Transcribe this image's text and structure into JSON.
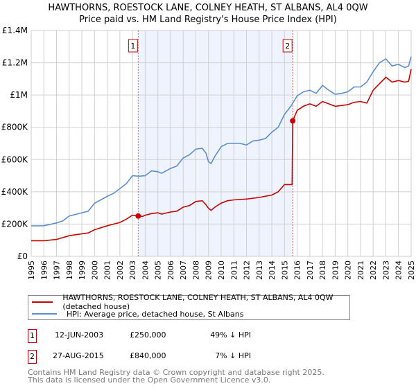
{
  "chart_data": {
    "type": "line",
    "title": "HAWTHORNS, ROESTOCK LANE, COLNEY HEATH, ST ALBANS, AL4 0QW",
    "subtitle": "Price paid vs. HM Land Registry's House Price Index (HPI)",
    "xlim": [
      1995,
      2025
    ],
    "ylim": [
      0,
      1400000
    ],
    "x_ticks": [
      "1995",
      "1996",
      "1997",
      "1998",
      "1999",
      "2000",
      "2001",
      "2002",
      "2003",
      "2004",
      "2005",
      "2006",
      "2007",
      "2008",
      "2009",
      "2010",
      "2011",
      "2012",
      "2013",
      "2014",
      "2015",
      "2016",
      "2017",
      "2018",
      "2019",
      "2020",
      "2021",
      "2022",
      "2023",
      "2024",
      "2025"
    ],
    "y_ticks": [
      {
        "v": 0,
        "label": "£0"
      },
      {
        "v": 200000,
        "label": "£200K"
      },
      {
        "v": 400000,
        "label": "£400K"
      },
      {
        "v": 600000,
        "label": "£600K"
      },
      {
        "v": 800000,
        "label": "£800K"
      },
      {
        "v": 1000000,
        "label": "£1M"
      },
      {
        "v": 1200000,
        "label": "£1.2M"
      },
      {
        "v": 1400000,
        "label": "£1.4M"
      }
    ],
    "grid": true,
    "shaded_range": [
      2003.45,
      2015.65
    ],
    "series": [
      {
        "name": "HAWTHORNS, ROESTOCK LANE, COLNEY HEATH, ST ALBANS, AL4 0QW (detached house)",
        "color": "#cc0000",
        "x": [
          1995,
          1996,
          1997,
          1998,
          1999,
          1999.5,
          2000,
          2001,
          2002,
          2002.5,
          2003,
          2003.45,
          2003.8,
          2004,
          2004.5,
          2005,
          2005.3,
          2006,
          2006.5,
          2007,
          2007.5,
          2008,
          2008.5,
          2008.8,
          2009,
          2009.2,
          2009.5,
          2010,
          2010.5,
          2011,
          2012,
          2013,
          2014,
          2014.5,
          2015,
          2015.6,
          2015.65,
          2016,
          2016.5,
          2017,
          2017.5,
          2018,
          2018.5,
          2019,
          2020,
          2020.5,
          2021,
          2021.5,
          2022,
          2022.5,
          2023,
          2023.5,
          2024,
          2024.5,
          2024.8,
          2025
        ],
        "y": [
          97000,
          97000,
          105000,
          128000,
          140000,
          145000,
          165000,
          190000,
          210000,
          230000,
          255000,
          250000,
          248000,
          255000,
          265000,
          270000,
          262000,
          275000,
          280000,
          305000,
          315000,
          340000,
          345000,
          320000,
          298000,
          285000,
          305000,
          330000,
          345000,
          350000,
          355000,
          365000,
          380000,
          400000,
          445000,
          445000,
          840000,
          905000,
          930000,
          945000,
          930000,
          960000,
          945000,
          930000,
          940000,
          955000,
          960000,
          950000,
          1030000,
          1070000,
          1110000,
          1080000,
          1090000,
          1080000,
          1085000,
          1160000
        ]
      },
      {
        "name": "HPI: Average price, detached house, St Albans",
        "color": "#5b8dd0",
        "x": [
          1995,
          1996,
          1997,
          1997.5,
          1998,
          1999,
          1999.5,
          2000,
          2001,
          2001.5,
          2002,
          2002.5,
          2003,
          2003.5,
          2004,
          2004.5,
          2005,
          2005.3,
          2006,
          2006.5,
          2007,
          2007.5,
          2008,
          2008.5,
          2008.8,
          2009,
          2009.2,
          2009.5,
          2010,
          2010.5,
          2011,
          2011.5,
          2012,
          2012.5,
          2013,
          2013.5,
          2014,
          2014.5,
          2015,
          2015.5,
          2016,
          2016.5,
          2017,
          2017.5,
          2018,
          2018.5,
          2019,
          2019.5,
          2020,
          2020.5,
          2021,
          2021.5,
          2022,
          2022.5,
          2023,
          2023.5,
          2024,
          2024.5,
          2024.8,
          2025
        ],
        "y": [
          189000,
          190000,
          207000,
          220000,
          250000,
          270000,
          280000,
          329000,
          372000,
          390000,
          420000,
          450000,
          500000,
          497000,
          500000,
          530000,
          525000,
          515000,
          545000,
          560000,
          610000,
          630000,
          665000,
          670000,
          640000,
          587000,
          575000,
          620000,
          680000,
          700000,
          700000,
          700000,
          690000,
          715000,
          720000,
          730000,
          770000,
          800000,
          880000,
          930000,
          995000,
          1020000,
          1030000,
          1010000,
          1060000,
          1030000,
          1005000,
          1010000,
          1020000,
          1050000,
          1050000,
          1080000,
          1145000,
          1200000,
          1224000,
          1180000,
          1190000,
          1170000,
          1180000,
          1238000
        ]
      }
    ],
    "markers": [
      {
        "id": "1",
        "x": 2003.45,
        "y": 250000
      },
      {
        "id": "2",
        "x": 2015.65,
        "y": 840000
      }
    ]
  },
  "header": {
    "title": "HAWTHORNS, ROESTOCK LANE, COLNEY HEATH, ST ALBANS, AL4 0QW",
    "subtitle": "Price paid vs. HM Land Registry's House Price Index (HPI)"
  },
  "legend": {
    "items": [
      {
        "label": "HAWTHORNS, ROESTOCK LANE, COLNEY HEATH, ST ALBANS, AL4 0QW (detached house)",
        "color": "#cc0000"
      },
      {
        "label": "HPI: Average price, detached house, St Albans",
        "color": "#5b8dd0"
      }
    ]
  },
  "transactions": [
    {
      "id": "1",
      "date": "12-JUN-2003",
      "price": "£250,000",
      "hpi": "49% ↓ HPI"
    },
    {
      "id": "2",
      "date": "27-AUG-2015",
      "price": "£840,000",
      "hpi": "7% ↓ HPI"
    }
  ],
  "footer": {
    "line1": "Contains HM Land Registry data © Crown copyright and database right 2025.",
    "line2": "This data is licensed under the Open Government Licence v3.0."
  }
}
